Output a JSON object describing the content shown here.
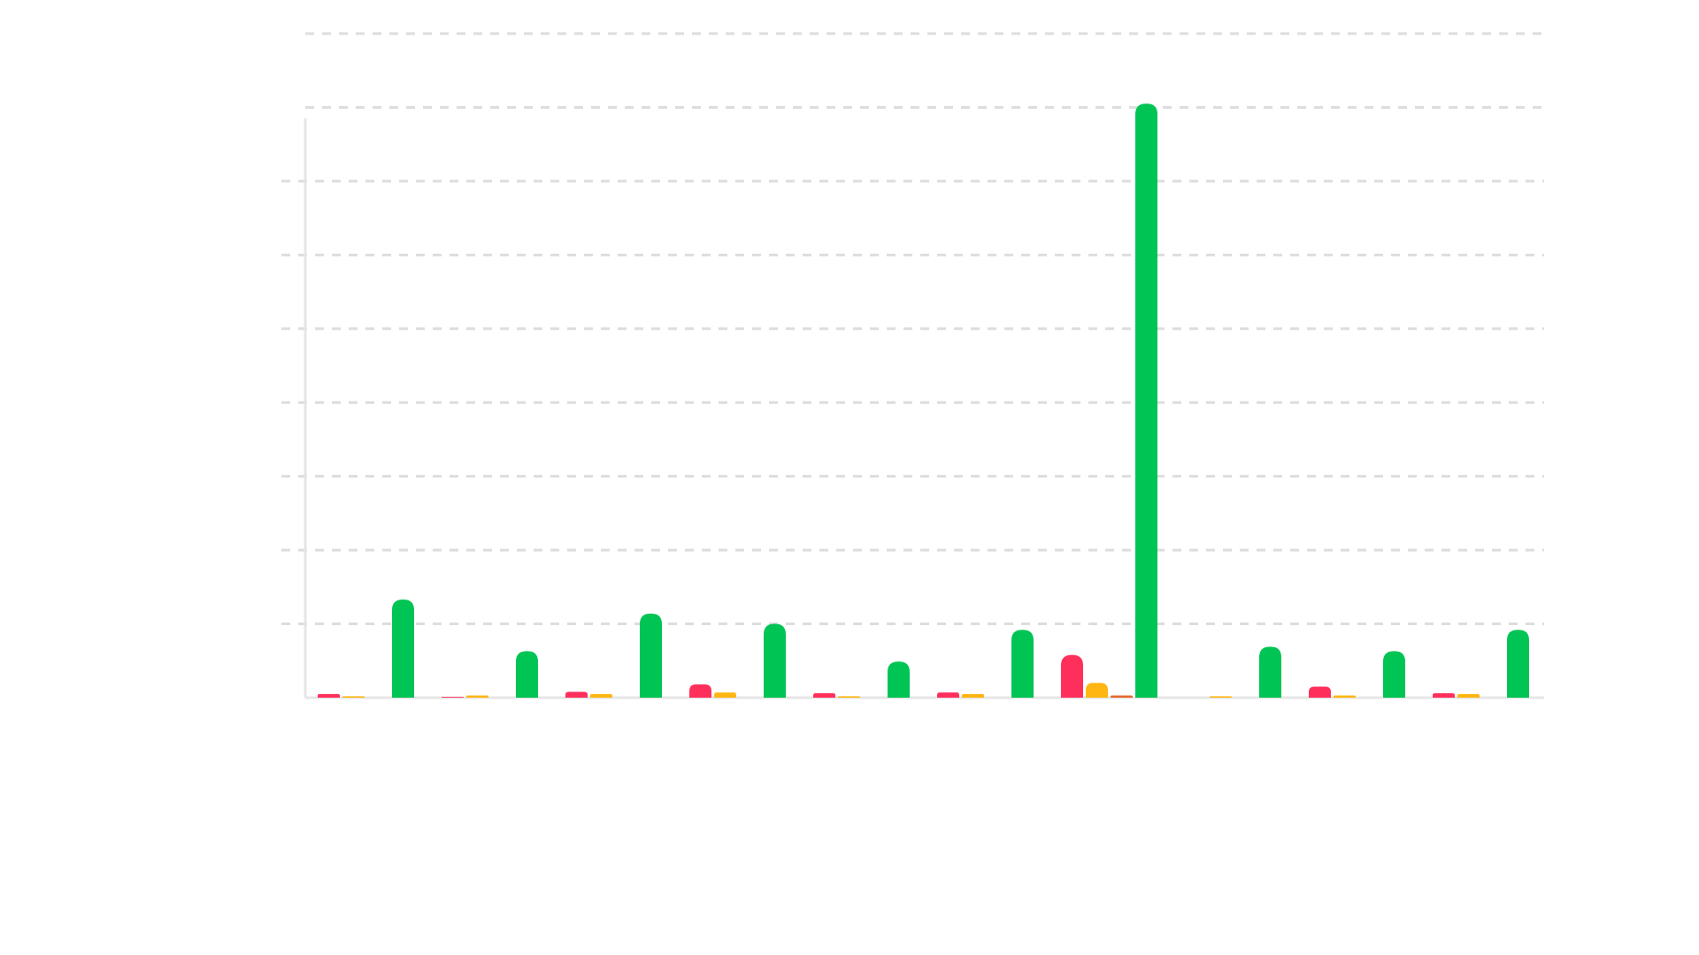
{
  "chart_data": {
    "type": "bar",
    "grid": true,
    "legend": "none",
    "ylim": [
      0,
      9
    ],
    "y_gridlines": [
      1,
      2,
      3,
      4,
      5,
      6,
      7,
      8,
      9
    ],
    "category_count": 10,
    "series_colors": [
      "#FF2F5C",
      "#FFB612",
      "#E8692C",
      "#00C454"
    ],
    "series": [
      {
        "values": [
          0.05,
          0.01,
          0.08,
          0.18,
          0.06,
          0.07,
          0.58,
          0.0,
          0.15,
          0.06
        ]
      },
      {
        "values": [
          0.02,
          0.03,
          0.05,
          0.07,
          0.02,
          0.05,
          0.2,
          0.02,
          0.03,
          0.05
        ]
      },
      {
        "values": [
          0.0,
          0.0,
          0.0,
          0.0,
          0.0,
          0.0,
          0.03,
          0.0,
          0.0,
          0.0
        ]
      },
      {
        "values": [
          1.33,
          0.63,
          1.14,
          1.0,
          0.49,
          0.92,
          8.05,
          0.69,
          0.63,
          0.92
        ]
      }
    ]
  }
}
